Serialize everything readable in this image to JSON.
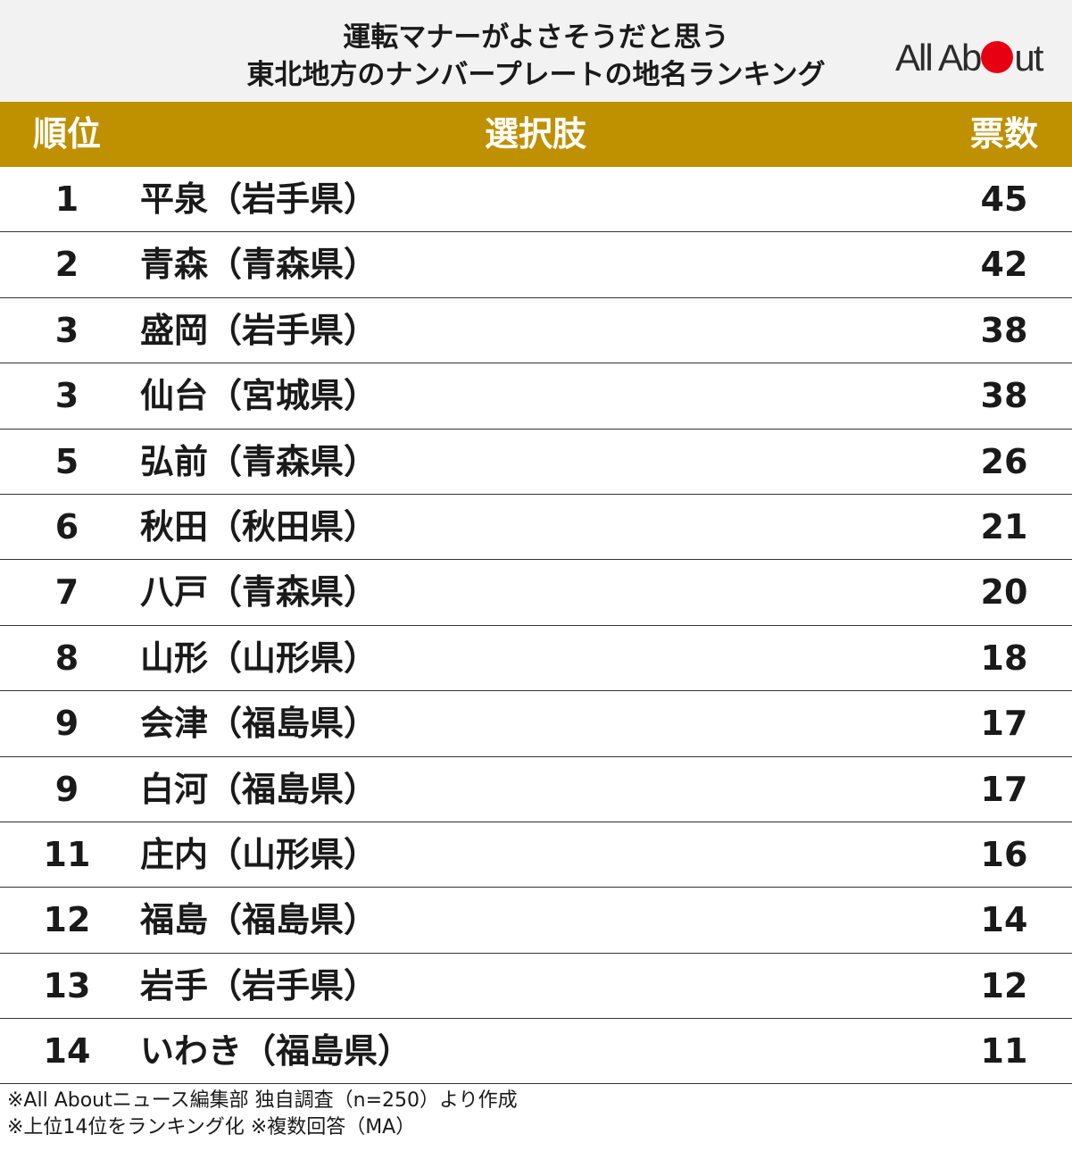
{
  "title": {
    "line1": "運転マナーがよさそうだと思う",
    "line2": "東北地方のナンバープレートの地名ランキング"
  },
  "logo": {
    "text_left": "All Ab",
    "text_right": "ut",
    "dot_color": "#e60012"
  },
  "colors": {
    "header_bg": "#bf9000",
    "title_bg": "#f2f2f2"
  },
  "table": {
    "headers": {
      "rank": "順位",
      "choice": "選択肢",
      "votes": "票数"
    },
    "rows": [
      {
        "rank": "1",
        "choice": "平泉（岩手県）",
        "votes": "45"
      },
      {
        "rank": "2",
        "choice": "青森（青森県）",
        "votes": "42"
      },
      {
        "rank": "3",
        "choice": "盛岡（岩手県）",
        "votes": "38"
      },
      {
        "rank": "3",
        "choice": "仙台（宮城県）",
        "votes": "38"
      },
      {
        "rank": "5",
        "choice": "弘前（青森県）",
        "votes": "26"
      },
      {
        "rank": "6",
        "choice": "秋田（秋田県）",
        "votes": "21"
      },
      {
        "rank": "7",
        "choice": "八戸（青森県）",
        "votes": "20"
      },
      {
        "rank": "8",
        "choice": "山形（山形県）",
        "votes": "18"
      },
      {
        "rank": "9",
        "choice": "会津（福島県）",
        "votes": "17"
      },
      {
        "rank": "9",
        "choice": "白河（福島県）",
        "votes": "17"
      },
      {
        "rank": "11",
        "choice": "庄内（山形県）",
        "votes": "16"
      },
      {
        "rank": "12",
        "choice": "福島（福島県）",
        "votes": "14"
      },
      {
        "rank": "13",
        "choice": "岩手（岩手県）",
        "votes": "12"
      },
      {
        "rank": "14",
        "choice": "いわき（福島県）",
        "votes": "11"
      }
    ]
  },
  "notes": {
    "line1": "※All Aboutニュース編集部 独自調査（n=250）より作成",
    "line2": "※上位14位をランキング化 ※複数回答（MA）"
  }
}
